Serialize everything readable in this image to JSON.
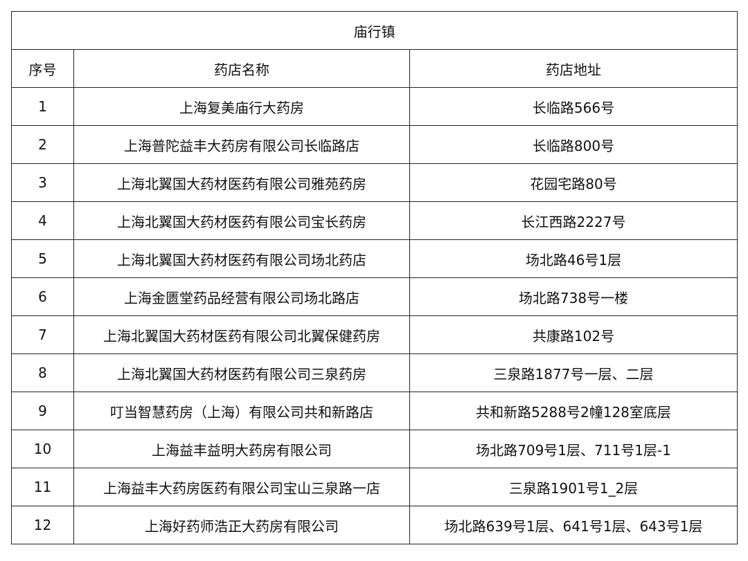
{
  "title": "庙行镇",
  "table": {
    "header": [
      "序号",
      "药店名称",
      "药店地址"
    ],
    "rows": [
      [
        "1",
        "上海复美庙行大药房",
        "长临路566号"
      ],
      [
        "2",
        "上海普陀益丰大药房有限公司长临路店",
        "长临路800号"
      ],
      [
        "3",
        "上海北翼国大药材医药有限公司雅苑药房",
        "花园宅路80号"
      ],
      [
        "4",
        "上海北翼国大药材医药有限公司宝长药房",
        "长江西路2227号"
      ],
      [
        "5",
        "上海北翼国大药材医药有限公司场北药店",
        "场北路46号1层"
      ],
      [
        "6",
        "上海金匮堂药品经营有限公司场北路店",
        "场北路738号一楼"
      ],
      [
        "7",
        "上海北翼国大药材医药有限公司北翼保健药房",
        "共康路102号"
      ],
      [
        "8",
        "上海北翼国大药材医药有限公司三泉药房",
        "三泉路1877号一层、二层"
      ],
      [
        "9",
        "叮当智慧药房（上海）有限公司共和新路店",
        "共和新路5288号2幢128室底层"
      ],
      [
        "10",
        "上海益丰益明大药房有限公司",
        "场北路709号1层、711号1层-1"
      ],
      [
        "11",
        "上海益丰大药房医药有限公司宝山三泉路一店",
        "三泉路1901号1_2层"
      ],
      [
        "12",
        "上海好药师浩正大药房有限公司",
        "场北路639号1层、641号1层、643号1层"
      ]
    ]
  }
}
